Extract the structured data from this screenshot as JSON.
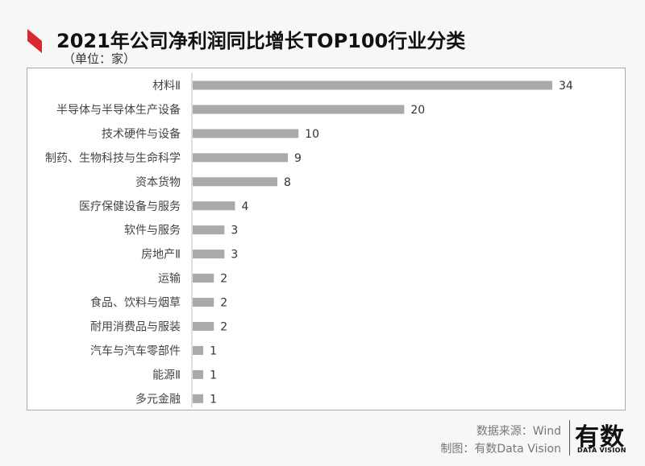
{
  "header": {
    "title": "2021年公司净利润同比增长TOP100行业分类",
    "unit": "（单位：家）",
    "accent_color": "#d9282f"
  },
  "chart_data": {
    "type": "bar",
    "orientation": "horizontal",
    "title": "2021年公司净利润同比增长TOP100行业分类",
    "categories": [
      "材料Ⅱ",
      "半导体与半导体生产设备",
      "技术硬件与设备",
      "制药、生物科技与生命科学",
      "资本货物",
      "医疗保健设备与服务",
      "软件与服务",
      "房地产Ⅱ",
      "运输",
      "食品、饮料与烟草",
      "耐用消费品与服装",
      "汽车与汽车零部件",
      "能源Ⅱ",
      "多元金融"
    ],
    "values": [
      34,
      20,
      10,
      9,
      8,
      4,
      3,
      3,
      2,
      2,
      2,
      1,
      1,
      1
    ],
    "xlim": [
      0,
      34
    ],
    "bar_color": "#aaaaaa",
    "grid": false,
    "data_labels": true
  },
  "footer": {
    "source": "数据来源：Wind",
    "maker": "制图：有数Data Vision",
    "logo_main": "有数",
    "logo_sub": "DATA VISION"
  }
}
